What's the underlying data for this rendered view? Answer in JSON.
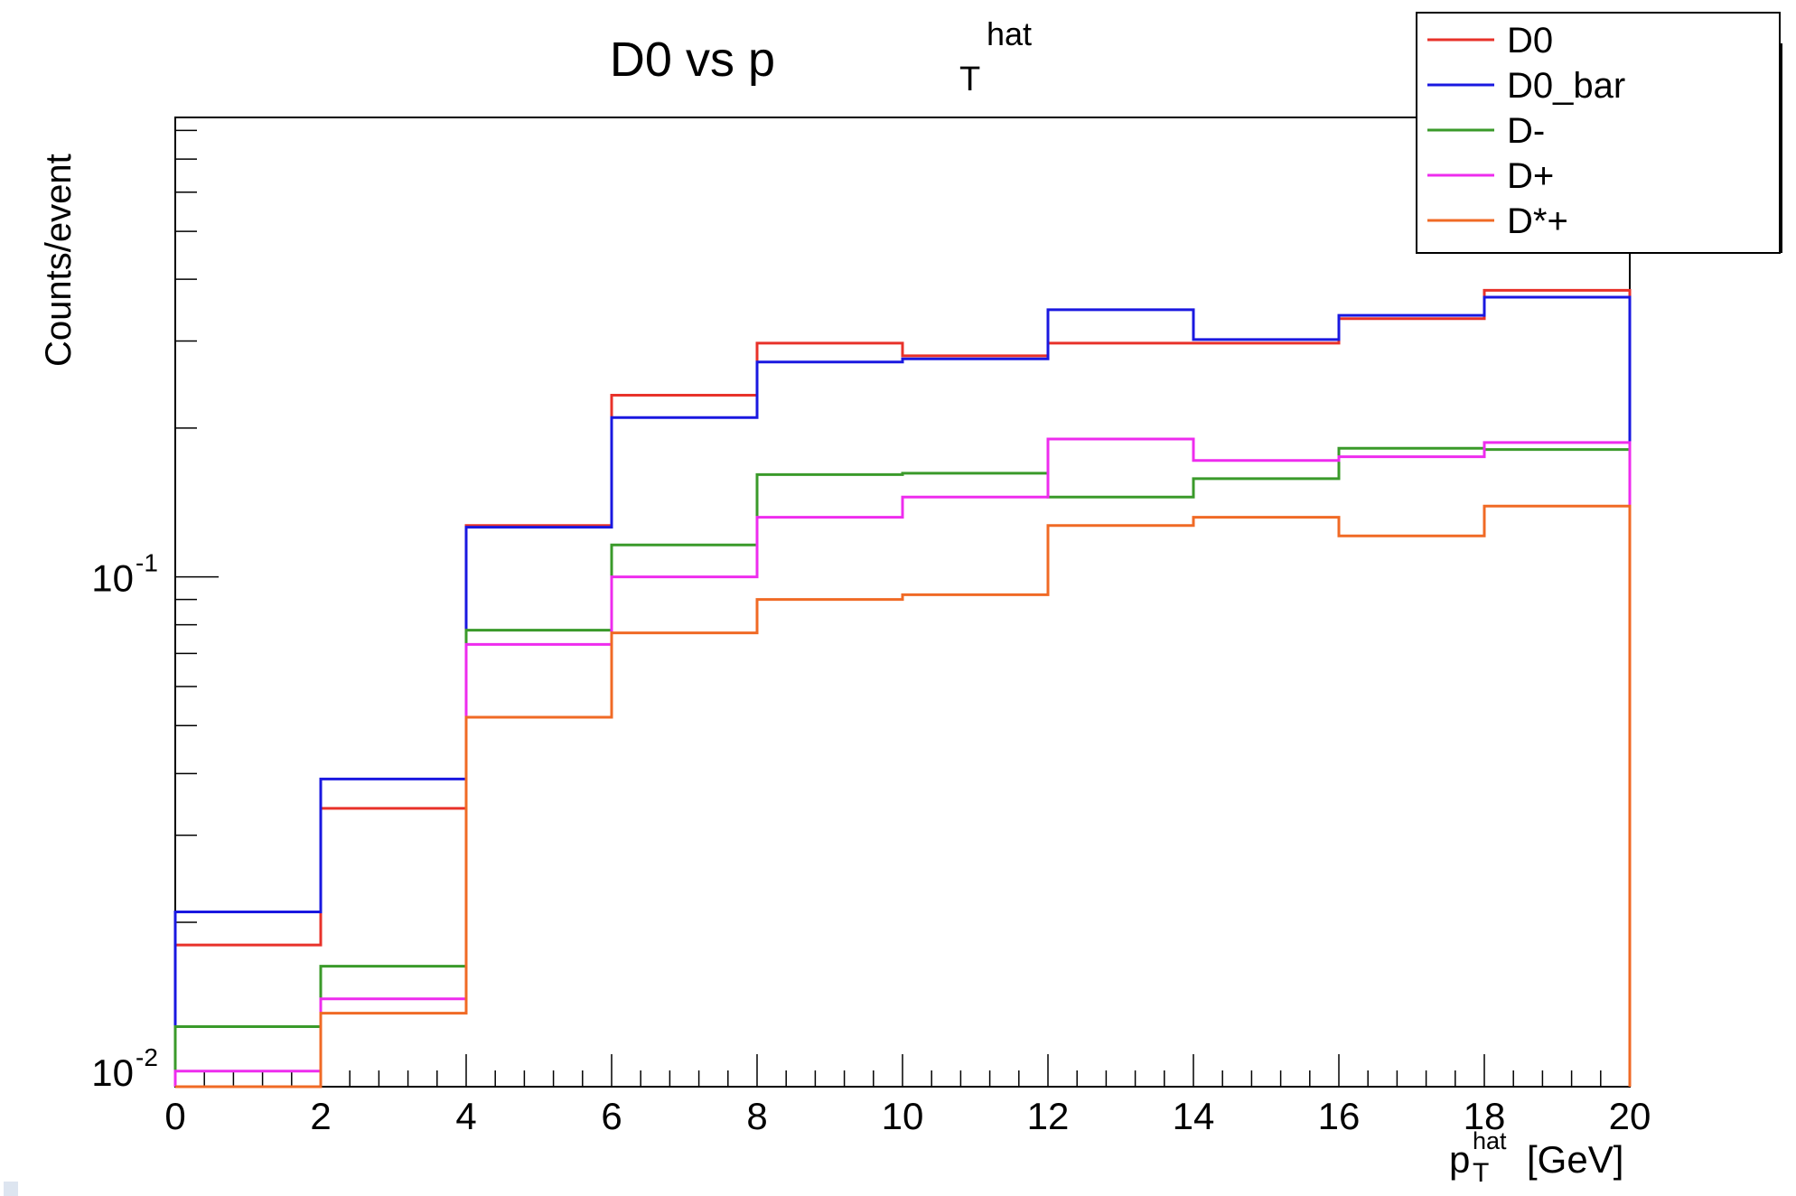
{
  "chart_data": {
    "type": "line",
    "title": {
      "main": "D0 vs p",
      "sub": "T",
      "sup": "hat"
    },
    "ylabel": "Counts/event",
    "xlabel": {
      "main": "p",
      "sub": "T",
      "sup": "hat",
      "unit": "[GeV]"
    },
    "xlim": [
      0,
      20
    ],
    "ylim": [
      0.0093,
      0.85
    ],
    "yscale": "log",
    "x_tick_labels": [
      "0",
      "2",
      "4",
      "6",
      "8",
      "10",
      "12",
      "14",
      "16",
      "18",
      "20"
    ],
    "y_tick_labels": [
      {
        "value": 0.1,
        "base": "10",
        "exp": "-1"
      },
      {
        "value": 0.01,
        "base": "10",
        "exp": "-2"
      }
    ],
    "bin_edges": [
      0,
      2,
      4,
      6,
      8,
      10,
      12,
      14,
      16,
      18,
      20
    ],
    "legend_position": "top-right",
    "series": [
      {
        "name": "D0",
        "color": "#e8322a",
        "values": [
          0.018,
          0.034,
          0.127,
          0.233,
          0.297,
          0.28,
          0.297,
          0.297,
          0.333,
          0.38
        ]
      },
      {
        "name": "D0_bar",
        "color": "#1a18e0",
        "values": [
          0.021,
          0.039,
          0.126,
          0.21,
          0.272,
          0.276,
          0.347,
          0.302,
          0.338,
          0.368
        ]
      },
      {
        "name": "D-",
        "color": "#3a9a2a",
        "values": [
          0.0123,
          0.0163,
          0.078,
          0.116,
          0.161,
          0.162,
          0.145,
          0.158,
          0.182,
          0.181
        ]
      },
      {
        "name": "D+",
        "color": "#ee2cee",
        "values": [
          0.01,
          0.014,
          0.073,
          0.1,
          0.132,
          0.145,
          0.19,
          0.172,
          0.175,
          0.187
        ]
      },
      {
        "name": "D*+",
        "color": "#f06a25",
        "values": [
          0.0093,
          0.0131,
          0.052,
          0.077,
          0.09,
          0.092,
          0.127,
          0.132,
          0.121,
          0.139
        ]
      }
    ]
  }
}
